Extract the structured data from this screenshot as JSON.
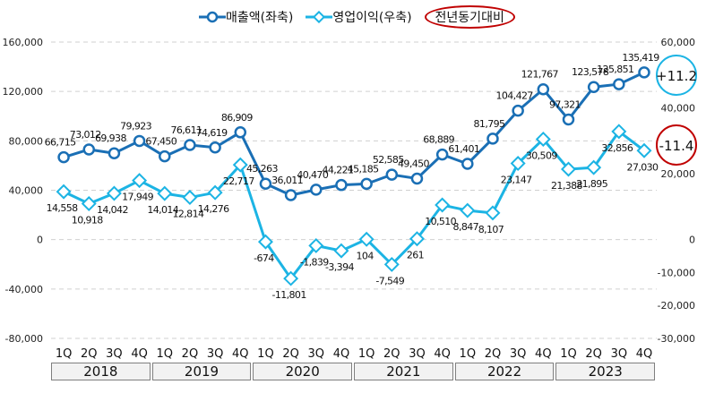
{
  "chart_data": {
    "type": "line",
    "legend": {
      "sales": "매출액(좌축)",
      "op": "영업이익(우축)",
      "yoy": "전년동기대비"
    },
    "legend_placement": "top-center",
    "quarters": [
      "1Q",
      "2Q",
      "3Q",
      "4Q",
      "1Q",
      "2Q",
      "3Q",
      "4Q",
      "1Q",
      "2Q",
      "3Q",
      "4Q",
      "1Q",
      "2Q",
      "3Q",
      "4Q",
      "1Q",
      "2Q",
      "3Q",
      "4Q",
      "1Q",
      "2Q",
      "3Q",
      "4Q"
    ],
    "years": [
      "2018",
      "2019",
      "2020",
      "2021",
      "2022",
      "2023"
    ],
    "series": [
      {
        "name": "매출액(좌축)",
        "axis": "left",
        "color": "#1a6fb5",
        "values": [
          66715,
          73012,
          69938,
          79923,
          67450,
          76611,
          74619,
          86909,
          45263,
          36011,
          40470,
          44221,
          45185,
          52585,
          49450,
          68889,
          61401,
          81795,
          104427,
          121767,
          97321,
          123578,
          125851,
          135419
        ]
      },
      {
        "name": "영업이익(우축)",
        "axis": "right",
        "color": "#1cb4e4",
        "values": [
          14558,
          10918,
          14042,
          17949,
          14014,
          12814,
          14276,
          22717,
          -674,
          -11801,
          -1839,
          -3394,
          104,
          -7549,
          261,
          10510,
          8847,
          8107,
          23147,
          30509,
          21388,
          21895,
          32856,
          27030
        ]
      }
    ],
    "left_axis": {
      "range": [
        -80000,
        160000
      ],
      "ticks": [
        "160,000",
        "120,000",
        "80,000",
        "40,000",
        "0",
        "-40,000",
        "-80,000"
      ]
    },
    "right_axis": {
      "range": [
        -30000,
        60000
      ],
      "ticks": [
        "60,000",
        "40,000",
        "20,000",
        "0",
        "-10,000",
        "-20,000",
        "-30,000"
      ]
    },
    "annotations": [
      {
        "text": "+11.2",
        "series": "매출액(좌축)",
        "color": "#1cb4e4"
      },
      {
        "text": "-11.4",
        "series": "영업이익(우축)",
        "color": "#c00000"
      }
    ],
    "grid": true
  }
}
